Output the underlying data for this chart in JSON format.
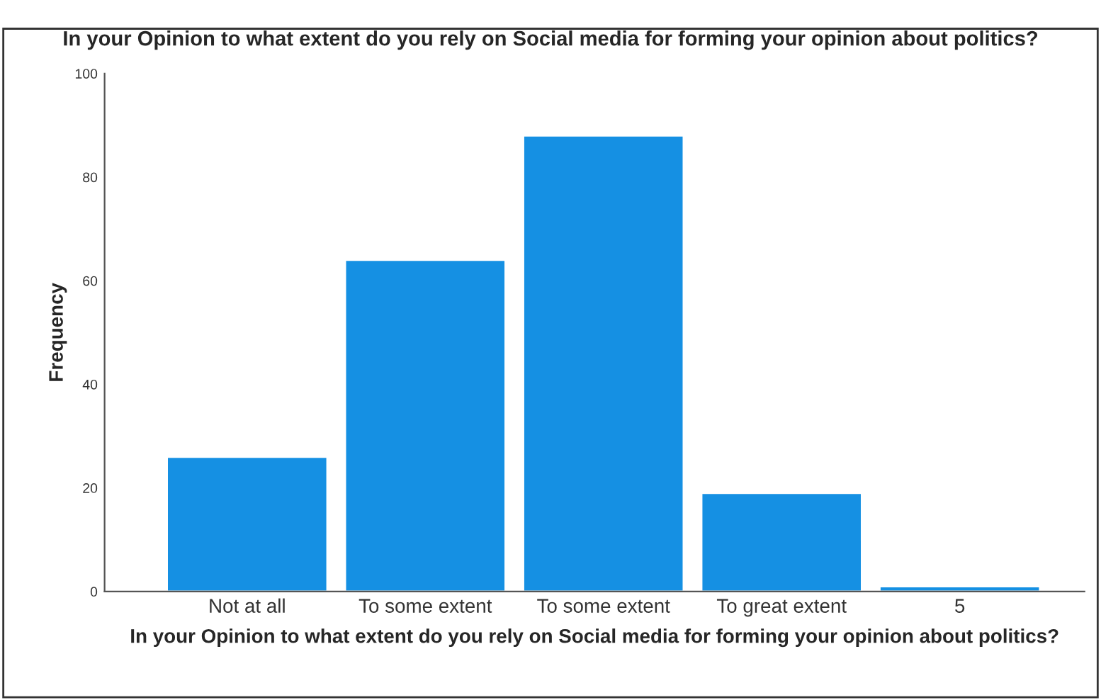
{
  "chart_data": {
    "type": "bar",
    "title": "In your Opinion to what extent do you rely on Social media for forming your opinion about politics?",
    "xlabel": "In your Opinion to what extent do you rely on Social media for forming your opinion about politics?",
    "ylabel": "Frequency",
    "categories": [
      "Not at all",
      "To some extent",
      "To some extent",
      "To great extent",
      "5"
    ],
    "values": [
      26,
      64,
      88,
      19,
      1
    ],
    "color": "#1590e3",
    "ylim": [
      0,
      100
    ],
    "yticks": [
      0,
      20,
      40,
      60,
      80,
      100
    ],
    "grid": false
  }
}
